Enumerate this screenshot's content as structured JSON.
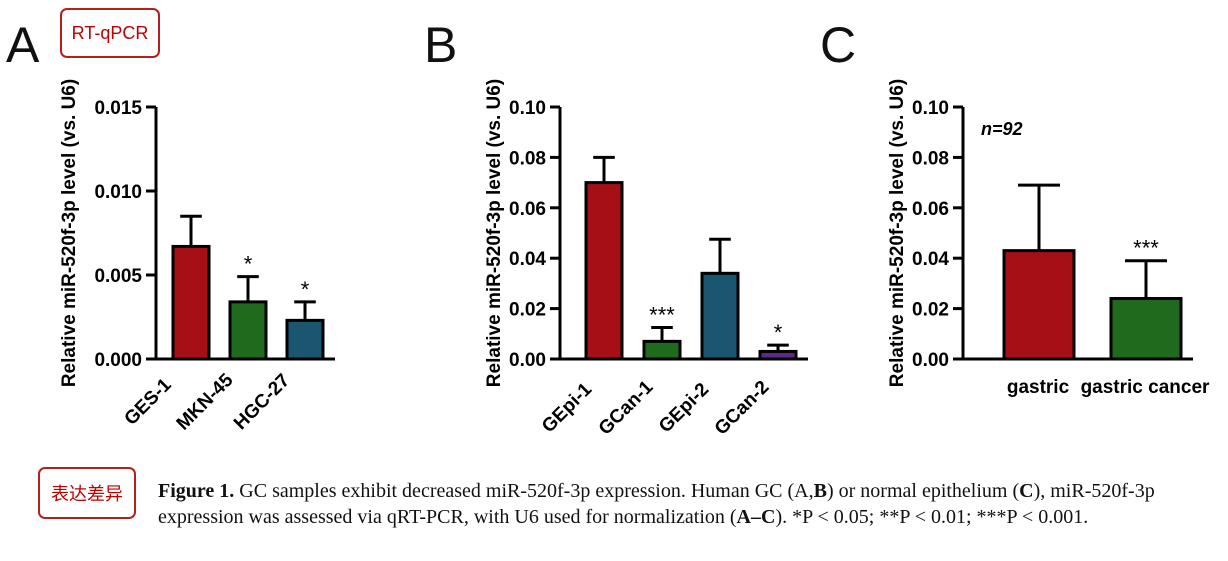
{
  "callouts": {
    "rtqpcr": "RT-qPCR",
    "expression": "表达差异"
  },
  "caption": {
    "label": "Figure 1.",
    "text_1": "  GC samples exhibit decreased miR-520f-3p expression. Human GC (A,",
    "bold_B": "B",
    "text_2": ") or normal epithelium (",
    "bold_C": "C",
    "text_3": "), miR-520f-3p expression was assessed via qRT-PCR, with U6 used for normalization (",
    "bold_AC": "A–C",
    "text_4": "). *P < 0.05; **P < 0.01; ***P < 0.001."
  },
  "chart_data": [
    {
      "panel": "A",
      "type": "bar",
      "ylabel": "Relative miR-520f-3p level (vs. U6)",
      "ylim": [
        0,
        0.015
      ],
      "yticks": [
        "0.000",
        "0.005",
        "0.010",
        "0.015"
      ],
      "categories": [
        "GES-1",
        "MKN-45",
        "HGC-27"
      ],
      "values": [
        0.0067,
        0.0034,
        0.0023
      ],
      "errors": [
        0.0018,
        0.0015,
        0.0011
      ],
      "significance": [
        "",
        "*",
        "*"
      ],
      "colors": [
        "#a50f15",
        "#1e6b1e",
        "#1a5670"
      ],
      "annotation": ""
    },
    {
      "panel": "B",
      "type": "bar",
      "ylabel": "Relative miR-520f-3p level (vs. U6)",
      "ylim": [
        0,
        0.1
      ],
      "yticks": [
        "0.00",
        "0.02",
        "0.04",
        "0.06",
        "0.08",
        "0.10"
      ],
      "categories": [
        "GEpi-1",
        "GCan-1",
        "GEpi-2",
        "GCan-2"
      ],
      "values": [
        0.07,
        0.007,
        0.034,
        0.003
      ],
      "errors": [
        0.01,
        0.0055,
        0.0135,
        0.0025
      ],
      "significance": [
        "",
        "***",
        "",
        "*"
      ],
      "colors": [
        "#a50f15",
        "#1e6b1e",
        "#1a5670",
        "#5c2a86"
      ],
      "annotation": ""
    },
    {
      "panel": "C",
      "type": "bar",
      "ylabel": "Relative miR-520f-3p level (vs. U6)",
      "ylim": [
        0,
        0.1
      ],
      "yticks": [
        "0.00",
        "0.02",
        "0.04",
        "0.06",
        "0.08",
        "0.10"
      ],
      "categories": [
        "gastric",
        "gastric cancer"
      ],
      "values": [
        0.043,
        0.024
      ],
      "errors": [
        0.026,
        0.015
      ],
      "significance": [
        "",
        "***"
      ],
      "colors": [
        "#a50f15",
        "#1e6b1e"
      ],
      "annotation": "n=92"
    }
  ],
  "panels": [
    "A",
    "B",
    "C"
  ]
}
